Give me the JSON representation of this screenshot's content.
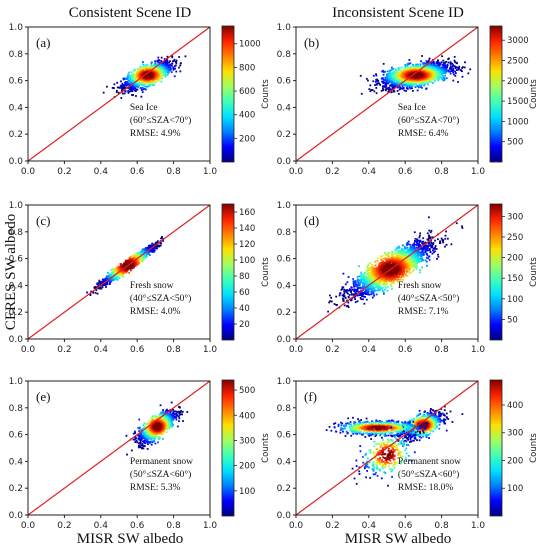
{
  "figure": {
    "col_titles": [
      "Consistent Scene ID",
      "Inconsistent Scene ID"
    ],
    "ylabel": "CERES SW albedo",
    "xlabel": "MISR SW albedo"
  },
  "colormap": [
    "#00007f",
    "#0000ff",
    "#0080ff",
    "#00e0ff",
    "#40ffb8",
    "#a0ff60",
    "#ffe000",
    "#ff8000",
    "#ff2000",
    "#7f0000"
  ],
  "chart_data": [
    {
      "type": "scatter",
      "panel": "(a)",
      "xlim": [
        0,
        1
      ],
      "ylim": [
        0,
        1
      ],
      "xticks": [
        "0.0",
        "0.2",
        "0.4",
        "0.6",
        "0.8",
        "1.0"
      ],
      "yticks": [
        "0.0",
        "0.2",
        "0.4",
        "0.6",
        "0.8",
        "1.0"
      ],
      "surface": "Sea Ice",
      "sza": "(60°≤SZA<70°)",
      "rmse": "RMSE: 4.9%",
      "colorbar": {
        "label": "Counts",
        "ticks": [
          200,
          400,
          600,
          800,
          1000
        ],
        "max": 1150
      },
      "distribution": [
        {
          "cx": 0.66,
          "cy": 0.64,
          "sx": 0.065,
          "sy": 0.05,
          "rho": 0.72,
          "n": 1300
        }
      ],
      "line": [
        [
          0,
          0
        ],
        [
          1,
          1
        ]
      ]
    },
    {
      "type": "scatter",
      "panel": "(b)",
      "xlim": [
        0,
        1
      ],
      "ylim": [
        0,
        1
      ],
      "xticks": [
        "0.0",
        "0.2",
        "0.4",
        "0.6",
        "0.8",
        "1.0"
      ],
      "yticks": [
        "0.0",
        "0.2",
        "0.4",
        "0.6",
        "0.8",
        "1.0"
      ],
      "surface": "Sea Ice",
      "sza": "(60°≤SZA<70°)",
      "rmse": "RMSE: 6.4%",
      "colorbar": {
        "label": "Counts",
        "ticks": [
          500,
          1000,
          1500,
          2000,
          2500,
          3000
        ],
        "max": 3350
      },
      "distribution": [
        {
          "cx": 0.66,
          "cy": 0.64,
          "sx": 0.09,
          "sy": 0.045,
          "rho": 0.55,
          "n": 2000
        }
      ],
      "line": [
        [
          0,
          0
        ],
        [
          1,
          1
        ]
      ]
    },
    {
      "type": "scatter",
      "panel": "(c)",
      "xlim": [
        0,
        1
      ],
      "ylim": [
        0,
        1
      ],
      "xticks": [
        "0.0",
        "0.2",
        "0.4",
        "0.6",
        "0.8",
        "1.0"
      ],
      "yticks": [
        "0.0",
        "0.2",
        "0.4",
        "0.6",
        "0.8",
        "1.0"
      ],
      "surface": "Fresh snow",
      "sza": "(40°≤SZA<50°)",
      "rmse": "RMSE: 4.0%",
      "colorbar": {
        "label": "Counts",
        "ticks": [
          20,
          40,
          60,
          80,
          100,
          120,
          140,
          160
        ],
        "max": 170
      },
      "distribution": [
        {
          "cx": 0.55,
          "cy": 0.55,
          "sx": 0.075,
          "sy": 0.075,
          "rho": 0.97,
          "n": 1300
        }
      ],
      "line": [
        [
          0,
          0
        ],
        [
          1,
          1
        ]
      ]
    },
    {
      "type": "scatter",
      "panel": "(d)",
      "xlim": [
        0,
        1
      ],
      "ylim": [
        0,
        1
      ],
      "xticks": [
        "0.0",
        "0.2",
        "0.4",
        "0.6",
        "0.8",
        "1.0"
      ],
      "yticks": [
        "0.0",
        "0.2",
        "0.4",
        "0.6",
        "0.8",
        "1.0"
      ],
      "surface": "Fresh snow",
      "sza": "(40°≤SZA<50°)",
      "rmse": "RMSE: 7.1%",
      "colorbar": {
        "label": "Counts",
        "ticks": [
          50,
          100,
          150,
          200,
          250,
          300
        ],
        "max": 330
      },
      "distribution": [
        {
          "cx": 0.52,
          "cy": 0.52,
          "sx": 0.11,
          "sy": 0.1,
          "rho": 0.85,
          "n": 2200
        }
      ],
      "line": [
        [
          0,
          0
        ],
        [
          1,
          1
        ]
      ]
    },
    {
      "type": "scatter",
      "panel": "(e)",
      "xlim": [
        0,
        1
      ],
      "ylim": [
        0,
        1
      ],
      "xticks": [
        "0.0",
        "0.2",
        "0.4",
        "0.6",
        "0.8",
        "1.0"
      ],
      "yticks": [
        "0.0",
        "0.2",
        "0.4",
        "0.6",
        "0.8",
        "1.0"
      ],
      "surface": "Permanent snow",
      "sza": "(50°≤SZA<60°)",
      "rmse": "RMSE: 5.3%",
      "colorbar": {
        "label": "Counts",
        "ticks": [
          100,
          200,
          300,
          400,
          500
        ],
        "max": 540
      },
      "distribution": [
        {
          "cx": 0.71,
          "cy": 0.66,
          "sx": 0.05,
          "sy": 0.06,
          "rho": 0.75,
          "n": 1100
        }
      ],
      "line": [
        [
          0,
          0
        ],
        [
          1,
          1
        ]
      ]
    },
    {
      "type": "scatter",
      "panel": "(f)",
      "xlim": [
        0,
        1
      ],
      "ylim": [
        0,
        1
      ],
      "xticks": [
        "0.0",
        "0.2",
        "0.4",
        "0.6",
        "0.8",
        "1.0"
      ],
      "yticks": [
        "0.0",
        "0.2",
        "0.4",
        "0.6",
        "0.8",
        "1.0"
      ],
      "surface": "Permanent snow",
      "sza": "(50°≤SZA<60°)",
      "rmse": "RMSE: 18.0%",
      "colorbar": {
        "label": "Counts",
        "ticks": [
          100,
          200,
          300,
          400
        ],
        "max": 490
      },
      "distribution": [
        {
          "cx": 0.7,
          "cy": 0.67,
          "sx": 0.05,
          "sy": 0.045,
          "rho": 0.6,
          "n": 900
        },
        {
          "cx": 0.45,
          "cy": 0.65,
          "sx": 0.11,
          "sy": 0.025,
          "rho": 0.0,
          "n": 700
        },
        {
          "cx": 0.5,
          "cy": 0.45,
          "sx": 0.07,
          "sy": 0.08,
          "rho": 0.5,
          "n": 300
        }
      ],
      "line": [
        [
          0,
          0
        ],
        [
          1,
          1
        ]
      ]
    }
  ]
}
